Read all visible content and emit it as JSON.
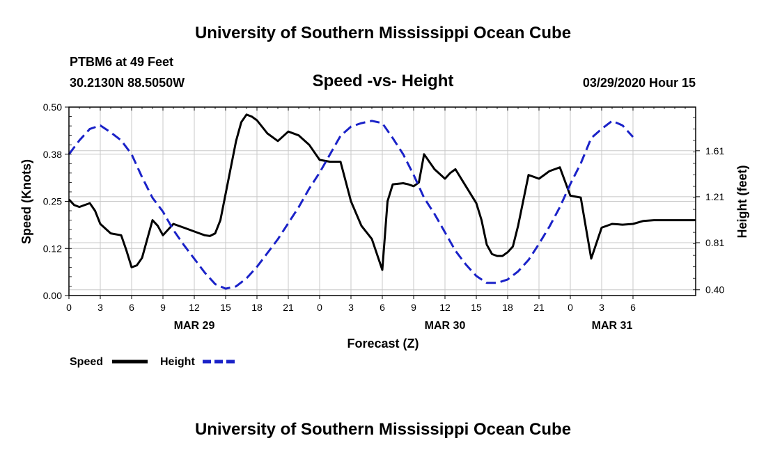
{
  "header": {
    "title": "University of Southern Mississippi Ocean Cube",
    "station": "PTBM6 at 49 Feet",
    "coords": "30.2130N 88.5050W",
    "chart_title": "Speed -vs- Height",
    "timestamp": "03/29/2020 Hour 15"
  },
  "footer": {
    "title": "University of Southern Mississippi Ocean Cube"
  },
  "legend": {
    "speed_label": "Speed",
    "height_label": "Height"
  },
  "colors": {
    "speed": "#000000",
    "height": "#1a22c8",
    "grid": "#c8c8c8",
    "axis": "#000000"
  },
  "chart_data": {
    "type": "line",
    "title": "Speed -vs- Height",
    "xlabel": "Forecast (Z)",
    "ylabel": "Speed (Knots)",
    "y2label": "Height (feet)",
    "xlim": [
      0,
      60
    ],
    "ylim": [
      0,
      0.5
    ],
    "y2lim": [
      0.35,
      1.99
    ],
    "x_tick_labels": [
      "0",
      "3",
      "6",
      "9",
      "12",
      "15",
      "18",
      "21",
      "0",
      "3",
      "6",
      "9",
      "12",
      "15",
      "18",
      "21",
      "0",
      "3",
      "6"
    ],
    "x_tick_hours": [
      0,
      3,
      6,
      9,
      12,
      15,
      18,
      21,
      24,
      27,
      30,
      33,
      36,
      39,
      42,
      45,
      48,
      51,
      54
    ],
    "date_labels": [
      {
        "label": "MAR 29",
        "hour": 12
      },
      {
        "label": "MAR 30",
        "hour": 36
      },
      {
        "label": "MAR 31",
        "hour": 52
      }
    ],
    "y_ticks": [
      {
        "value": 0.0,
        "label": "0.00"
      },
      {
        "value": 0.125,
        "label": "0.12"
      },
      {
        "value": 0.25,
        "label": "0.25"
      },
      {
        "value": 0.375,
        "label": "0.38"
      },
      {
        "value": 0.5,
        "label": "0.50"
      }
    ],
    "y2_ticks": [
      {
        "value": 0.4,
        "label": "0.40"
      },
      {
        "value": 0.81,
        "label": "0.81"
      },
      {
        "value": 1.21,
        "label": "1.21"
      },
      {
        "value": 1.61,
        "label": "1.61"
      }
    ],
    "series": [
      {
        "name": "Speed",
        "axis": "left",
        "style": "solid",
        "x": [
          0,
          0.5,
          1,
          1.5,
          2,
          2.5,
          3,
          4,
          5,
          5.5,
          6,
          6.5,
          7,
          7.5,
          8,
          8.5,
          9,
          9.5,
          10,
          11,
          12,
          12.5,
          13,
          13.5,
          14,
          14.5,
          15,
          15.5,
          16,
          16.5,
          17,
          17.5,
          18,
          19,
          20,
          21,
          22,
          23,
          24,
          25,
          26,
          27,
          28,
          29,
          30,
          30.5,
          31,
          32,
          32.5,
          33,
          33.5,
          34,
          35,
          36,
          36.5,
          37,
          38,
          39,
          39.5,
          40,
          40.5,
          41,
          41.5,
          42,
          42.5,
          43,
          44,
          45,
          45.5,
          46,
          46.5,
          47,
          48,
          49,
          50,
          51,
          52,
          53,
          54,
          55,
          56,
          57,
          58,
          59,
          60
        ],
        "values": [
          0.255,
          0.24,
          0.235,
          0.24,
          0.245,
          0.225,
          0.19,
          0.165,
          0.16,
          0.12,
          0.075,
          0.08,
          0.1,
          0.15,
          0.2,
          0.185,
          0.16,
          0.175,
          0.19,
          0.18,
          0.17,
          0.165,
          0.16,
          0.158,
          0.165,
          0.2,
          0.27,
          0.34,
          0.41,
          0.46,
          0.48,
          0.475,
          0.465,
          0.43,
          0.41,
          0.435,
          0.425,
          0.4,
          0.36,
          0.355,
          0.355,
          0.25,
          0.185,
          0.15,
          0.068,
          0.25,
          0.295,
          0.298,
          0.295,
          0.29,
          0.3,
          0.375,
          0.335,
          0.31,
          0.325,
          0.335,
          0.29,
          0.245,
          0.2,
          0.135,
          0.11,
          0.105,
          0.105,
          0.115,
          0.13,
          0.185,
          0.32,
          0.31,
          0.32,
          0.33,
          0.335,
          0.34,
          0.265,
          0.26,
          0.098,
          0.18,
          0.19,
          0.188,
          0.19,
          0.198,
          0.2,
          0.2,
          0.2,
          0.2,
          0.2
        ],
        "color": "#000000"
      },
      {
        "name": "Height",
        "axis": "right",
        "style": "dashed",
        "x": [
          0,
          1,
          2,
          3,
          4,
          5,
          6,
          7,
          8,
          9,
          10,
          11,
          12,
          13,
          14,
          15,
          16,
          17,
          18,
          19,
          20,
          21,
          22,
          23,
          24,
          25,
          26,
          27,
          28,
          29,
          30,
          31,
          32,
          33,
          34,
          35,
          36,
          37,
          38,
          39,
          40,
          41,
          42,
          43,
          44,
          45,
          46,
          47,
          48,
          49,
          50,
          51,
          52,
          53,
          54
        ],
        "values": [
          1.58,
          1.7,
          1.8,
          1.83,
          1.77,
          1.7,
          1.58,
          1.38,
          1.2,
          1.08,
          0.92,
          0.79,
          0.67,
          0.55,
          0.45,
          0.41,
          0.43,
          0.5,
          0.6,
          0.72,
          0.84,
          0.98,
          1.12,
          1.28,
          1.42,
          1.58,
          1.74,
          1.82,
          1.85,
          1.87,
          1.85,
          1.72,
          1.58,
          1.4,
          1.2,
          1.06,
          0.9,
          0.74,
          0.62,
          0.52,
          0.46,
          0.46,
          0.49,
          0.56,
          0.66,
          0.8,
          0.95,
          1.12,
          1.32,
          1.5,
          1.72,
          1.8,
          1.87,
          1.83,
          1.73
        ],
        "color": "#1a22c8"
      }
    ]
  }
}
